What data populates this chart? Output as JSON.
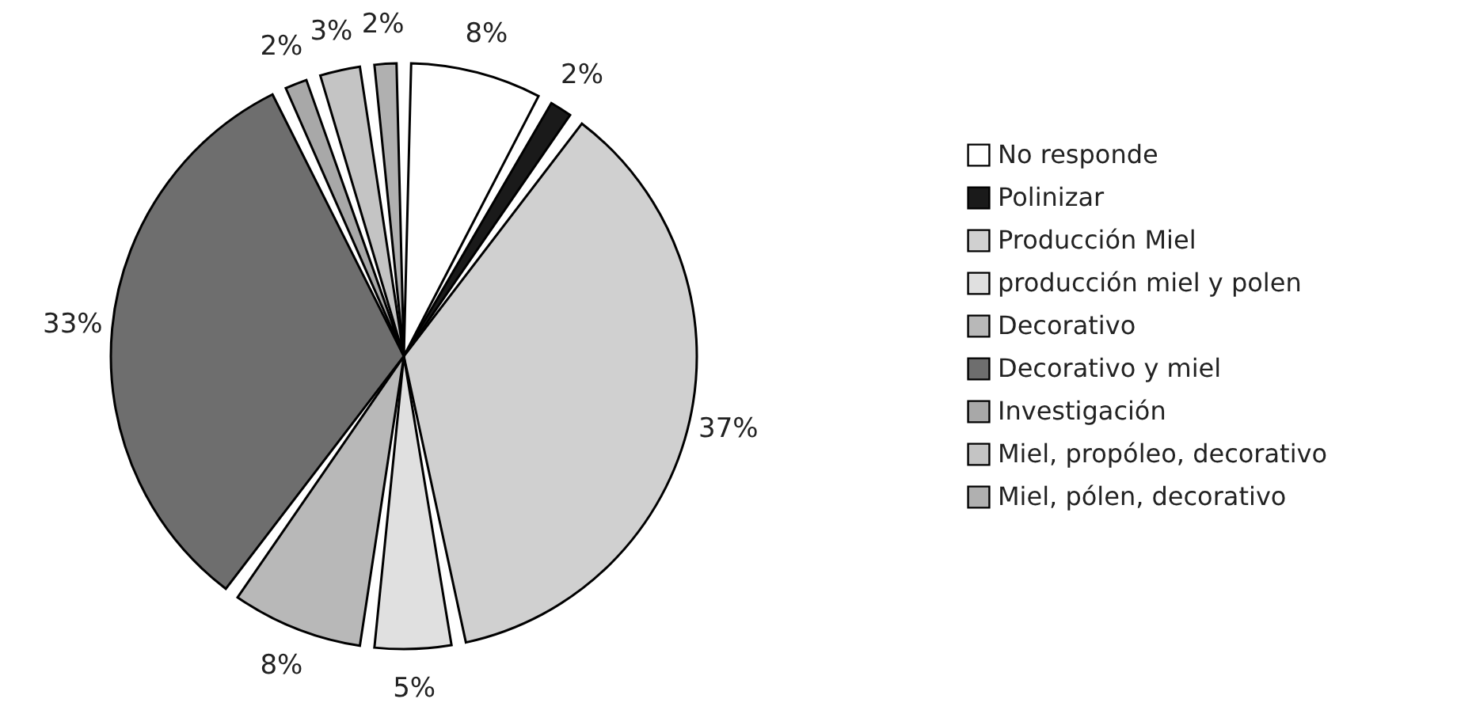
{
  "chart_data": {
    "type": "pie",
    "categories": [
      "No responde",
      "Polinizar",
      "Producción Miel",
      "producción miel y polen",
      "Decorativo",
      "Decorativo y miel",
      "Investigación",
      "Miel, propóleo, decorativo",
      "Miel, pólen, decorativo"
    ],
    "values": [
      8,
      2,
      37,
      5,
      8,
      33,
      2,
      3,
      2
    ],
    "value_labels": [
      "8%",
      "2%",
      "37%",
      "5%",
      "8%",
      "33%",
      "2%",
      "3%",
      "2%"
    ],
    "colors": [
      "#ffffff",
      "#1a1a1a",
      "#d0d0d0",
      "#e0e0e0",
      "#b8b8b8",
      "#6e6e6e",
      "#a8a8a8",
      "#c4c4c4",
      "#b0b0b0"
    ],
    "legend": "right"
  }
}
